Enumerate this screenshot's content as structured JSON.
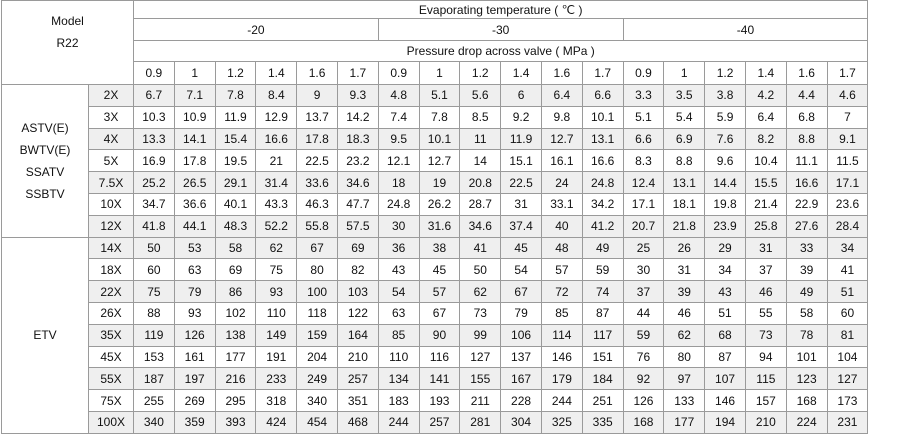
{
  "header": {
    "model": "Model",
    "refrigerant": "R22",
    "evaporating_label": "Evaporating temperature ( ℃ )",
    "temperatures": [
      -20,
      -30,
      -40
    ],
    "pressure_label": "Pressure drop across valve ( MPa )",
    "pressures": [
      0.9,
      1,
      1.2,
      1.4,
      1.6,
      1.7
    ]
  },
  "groups": [
    {
      "names": [
        "ASTV(E)",
        "BWTV(E)",
        "SSATV",
        "SSBTV"
      ],
      "rows": [
        {
          "size": "2X",
          "values": [
            6.7,
            7.1,
            7.8,
            8.4,
            9,
            9.3,
            4.8,
            5.1,
            5.6,
            6,
            6.4,
            6.6,
            3.3,
            3.5,
            3.8,
            4.2,
            4.4,
            4.6
          ]
        },
        {
          "size": "3X",
          "values": [
            10.3,
            10.9,
            11.9,
            12.9,
            13.7,
            14.2,
            7.4,
            7.8,
            8.5,
            9.2,
            9.8,
            10.1,
            5.1,
            5.4,
            5.9,
            6.4,
            6.8,
            7
          ]
        },
        {
          "size": "4X",
          "values": [
            13.3,
            14.1,
            15.4,
            16.6,
            17.8,
            18.3,
            9.5,
            10.1,
            11,
            11.9,
            12.7,
            13.1,
            6.6,
            6.9,
            7.6,
            8.2,
            8.8,
            9.1
          ]
        },
        {
          "size": "5X",
          "values": [
            16.9,
            17.8,
            19.5,
            21,
            22.5,
            23.2,
            12.1,
            12.7,
            14,
            15.1,
            16.1,
            16.6,
            8.3,
            8.8,
            9.6,
            10.4,
            11.1,
            11.5
          ]
        },
        {
          "size": "7.5X",
          "values": [
            25.2,
            26.5,
            29.1,
            31.4,
            33.6,
            34.6,
            18,
            19,
            20.8,
            22.5,
            24,
            24.8,
            12.4,
            13.1,
            14.4,
            15.5,
            16.6,
            17.1
          ]
        },
        {
          "size": "10X",
          "values": [
            34.7,
            36.6,
            40.1,
            43.3,
            46.3,
            47.7,
            24.8,
            26.2,
            28.7,
            31,
            33.1,
            34.2,
            17.1,
            18.1,
            19.8,
            21.4,
            22.9,
            23.6
          ]
        },
        {
          "size": "12X",
          "values": [
            41.8,
            44.1,
            48.3,
            52.2,
            55.8,
            57.5,
            30,
            31.6,
            34.6,
            37.4,
            40,
            41.2,
            20.7,
            21.8,
            23.9,
            25.8,
            27.6,
            28.4
          ]
        }
      ]
    },
    {
      "names": [
        "ETV"
      ],
      "rows": [
        {
          "size": "14X",
          "values": [
            50,
            53,
            58,
            62,
            67,
            69,
            36,
            38,
            41,
            45,
            48,
            49,
            25,
            26,
            29,
            31,
            33,
            34
          ]
        },
        {
          "size": "18X",
          "values": [
            60,
            63,
            69,
            75,
            80,
            82,
            43,
            45,
            50,
            54,
            57,
            59,
            30,
            31,
            34,
            37,
            39,
            41
          ]
        },
        {
          "size": "22X",
          "values": [
            75,
            79,
            86,
            93,
            100,
            103,
            54,
            57,
            62,
            67,
            72,
            74,
            37,
            39,
            43,
            46,
            49,
            51
          ]
        },
        {
          "size": "26X",
          "values": [
            88,
            93,
            102,
            110,
            118,
            122,
            63,
            67,
            73,
            79,
            85,
            87,
            44,
            46,
            51,
            55,
            58,
            60
          ]
        },
        {
          "size": "35X",
          "values": [
            119,
            126,
            138,
            149,
            159,
            164,
            85,
            90,
            99,
            106,
            114,
            117,
            59,
            62,
            68,
            73,
            78,
            81
          ]
        },
        {
          "size": "45X",
          "values": [
            153,
            161,
            177,
            191,
            204,
            210,
            110,
            116,
            127,
            137,
            146,
            151,
            76,
            80,
            87,
            94,
            101,
            104
          ]
        },
        {
          "size": "55X",
          "values": [
            187,
            197,
            216,
            233,
            249,
            257,
            134,
            141,
            155,
            167,
            179,
            184,
            92,
            97,
            107,
            115,
            123,
            127
          ]
        },
        {
          "size": "75X",
          "values": [
            255,
            269,
            295,
            318,
            340,
            351,
            183,
            193,
            211,
            228,
            244,
            251,
            126,
            133,
            146,
            157,
            168,
            173
          ]
        },
        {
          "size": "100X",
          "values": [
            340,
            359,
            393,
            424,
            454,
            468,
            244,
            257,
            281,
            304,
            325,
            335,
            168,
            177,
            194,
            210,
            224,
            231
          ]
        }
      ]
    }
  ]
}
